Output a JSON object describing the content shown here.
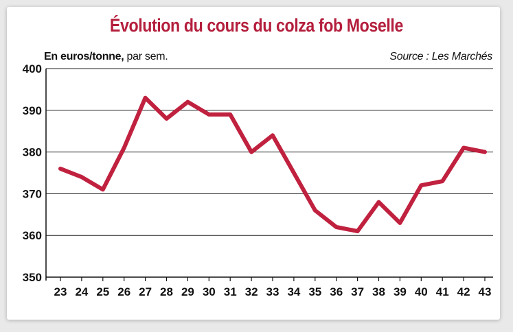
{
  "colors": {
    "title": "#b41e3c",
    "line": "#c0213f",
    "grid": "#222222",
    "axis": "#111111"
  },
  "chart_data": {
    "type": "line",
    "title": "Évolution du cours du colza fob Moselle",
    "unit_bold": "En euros/tonne,",
    "unit_rest": " par sem.",
    "source": "Source : Les Marchés",
    "xlabel": "",
    "ylabel": "",
    "x": [
      23,
      24,
      25,
      26,
      27,
      28,
      29,
      30,
      31,
      32,
      33,
      34,
      35,
      36,
      37,
      38,
      39,
      40,
      41,
      42,
      43
    ],
    "x_tick_labels": [
      "23",
      "24",
      "25",
      "26",
      "27",
      "28",
      "29",
      "30",
      "31",
      "32",
      "33",
      "34",
      "35",
      "36",
      "37",
      "38",
      "39",
      "40",
      "41",
      "42",
      "43"
    ],
    "series": [
      {
        "values": [
          376,
          374,
          371,
          381,
          393,
          388,
          392,
          389,
          389,
          380,
          384,
          375,
          366,
          362,
          361,
          368,
          363,
          372,
          373,
          381,
          380
        ]
      }
    ],
    "ylim": [
      350,
      400
    ],
    "y_ticks": [
      350,
      360,
      370,
      380,
      390,
      400
    ],
    "grid": true,
    "legend": "none"
  }
}
